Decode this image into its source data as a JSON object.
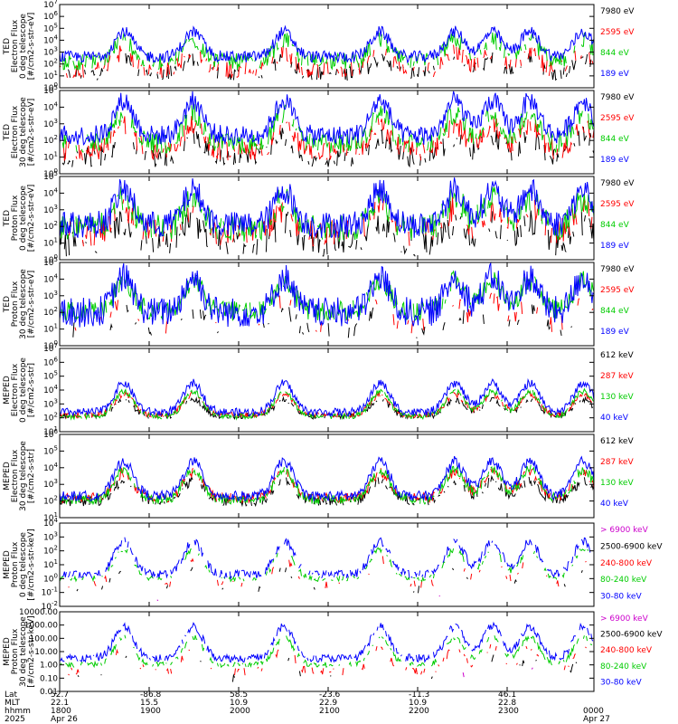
{
  "chart_data": [
    {
      "type": "line",
      "ylabel": [
        "TED",
        "Electron Flux",
        "0 deg telescope",
        "[#/cm2-s-str-eV]"
      ],
      "yscale": "log",
      "ylim": [
        1,
        10000000
      ],
      "ytick_labels": [
        "10^0",
        "10^1",
        "10^2",
        "10^3",
        "10^4",
        "10^5",
        "10^6",
        "10^7"
      ],
      "series": [
        {
          "name": "7980 eV",
          "color": "#000000",
          "level": 1.2,
          "spread": 0.6,
          "density": 0.5
        },
        {
          "name": "2595 eV",
          "color": "#ff0000",
          "level": 1.5,
          "spread": 0.7,
          "density": 0.6
        },
        {
          "name": "844 eV",
          "color": "#00cc00",
          "level": 2.2,
          "spread": 0.7,
          "density": 0.8
        },
        {
          "name": "189 eV",
          "color": "#0000ff",
          "level": 2.6,
          "spread": 0.5,
          "density": 1.0
        }
      ]
    },
    {
      "type": "line",
      "ylabel": [
        "TED",
        "Electron Flux",
        "30 deg telescope",
        "[#/cm2-s-str-eV]"
      ],
      "yscale": "log",
      "ylim": [
        1,
        100000
      ],
      "ytick_labels": [
        "10^0",
        "10^1",
        "10^2",
        "10^3",
        "10^4",
        "10^5"
      ],
      "series": [
        {
          "name": "7980 eV",
          "color": "#000000",
          "level": 1.0,
          "spread": 0.6,
          "density": 0.6
        },
        {
          "name": "2595 eV",
          "color": "#ff0000",
          "level": 1.4,
          "spread": 0.6,
          "density": 0.7
        },
        {
          "name": "844 eV",
          "color": "#00cc00",
          "level": 1.8,
          "spread": 0.6,
          "density": 0.8
        },
        {
          "name": "189 eV",
          "color": "#0000ff",
          "level": 2.3,
          "spread": 0.6,
          "density": 1.0
        }
      ]
    },
    {
      "type": "line",
      "ylabel": [
        "TED",
        "Proton Flux",
        "0 deg telescope",
        "[#/cm2-s-str-eV]"
      ],
      "yscale": "log",
      "ylim": [
        1,
        100000
      ],
      "ytick_labels": [
        "10^0",
        "10^1",
        "10^2",
        "10^3",
        "10^4",
        "10^5"
      ],
      "series": [
        {
          "name": "7980 eV",
          "color": "#000000",
          "level": 1.0,
          "spread": 0.8,
          "density": 0.6
        },
        {
          "name": "2595 eV",
          "color": "#ff0000",
          "level": 1.6,
          "spread": 0.8,
          "density": 0.6
        },
        {
          "name": "844 eV",
          "color": "#00cc00",
          "level": 1.9,
          "spread": 0.8,
          "density": 0.8
        },
        {
          "name": "189 eV",
          "color": "#0000ff",
          "level": 2.1,
          "spread": 0.8,
          "density": 1.0
        }
      ]
    },
    {
      "type": "line",
      "ylabel": [
        "TED",
        "Proton Flux",
        "30 deg telescope",
        "[#/cm2-s-str-eV]"
      ],
      "yscale": "log",
      "ylim": [
        1,
        100000
      ],
      "ytick_labels": [
        "10^0",
        "10^1",
        "10^2",
        "10^3",
        "10^4",
        "10^5"
      ],
      "series": [
        {
          "name": "7980 eV",
          "color": "#000000",
          "level": 0.9,
          "spread": 0.5,
          "density": 0.3
        },
        {
          "name": "2595 eV",
          "color": "#ff0000",
          "level": 1.2,
          "spread": 0.5,
          "density": 0.3
        },
        {
          "name": "844 eV",
          "color": "#00cc00",
          "level": 2.1,
          "spread": 0.6,
          "density": 0.9
        },
        {
          "name": "189 eV",
          "color": "#0000ff",
          "level": 2.0,
          "spread": 0.9,
          "density": 1.0
        }
      ]
    },
    {
      "type": "line",
      "ylabel": [
        "MEPED",
        "Electron Flux",
        "0 deg telescope",
        "[#/cm2-s-str]"
      ],
      "yscale": "log",
      "ylim": [
        10,
        10000000
      ],
      "ytick_labels": [
        "10^1",
        "10^2",
        "10^3",
        "10^4",
        "10^5",
        "10^6",
        "10^7"
      ],
      "series": [
        {
          "name": "612 keV",
          "color": "#000000",
          "level": 2.1,
          "spread": 0.2,
          "density": 0.7
        },
        {
          "name": "287 keV",
          "color": "#ff0000",
          "level": 2.2,
          "spread": 0.2,
          "density": 0.8
        },
        {
          "name": "130 keV",
          "color": "#00cc00",
          "level": 2.1,
          "spread": 0.2,
          "density": 0.9
        },
        {
          "name": "40 keV",
          "color": "#0000ff",
          "level": 2.4,
          "spread": 0.3,
          "density": 1.0
        }
      ]
    },
    {
      "type": "line",
      "ylabel": [
        "MEPED",
        "Electron Flux",
        "30 deg telescope",
        "[#/cm2-s-str]"
      ],
      "yscale": "log",
      "ylim": [
        10,
        1000000
      ],
      "ytick_labels": [
        "10^1",
        "10^2",
        "10^3",
        "10^4",
        "10^5",
        "10^6"
      ],
      "series": [
        {
          "name": "612 keV",
          "color": "#000000",
          "level": 2.0,
          "spread": 0.3,
          "density": 0.7
        },
        {
          "name": "287 keV",
          "color": "#ff0000",
          "level": 2.2,
          "spread": 0.3,
          "density": 0.8
        },
        {
          "name": "130 keV",
          "color": "#00cc00",
          "level": 2.1,
          "spread": 0.3,
          "density": 0.9
        },
        {
          "name": "40 keV",
          "color": "#0000ff",
          "level": 2.3,
          "spread": 0.3,
          "density": 1.0
        }
      ]
    },
    {
      "type": "line",
      "ylabel": [
        "MEPED",
        "Proton Flux",
        "0 deg telescope",
        "[#/cm2-s-str-keV]"
      ],
      "yscale": "log",
      "ylim": [
        0.01,
        10000
      ],
      "ytick_labels": [
        "10^-2",
        "10^-1",
        "10^0",
        "10^1",
        "10^2",
        "10^3",
        "10^4"
      ],
      "series": [
        {
          "name": "> 6900 keV",
          "color": "#cc00cc",
          "level": -1.5,
          "spread": 0.2,
          "density": 0.05
        },
        {
          "name": "2500-6900 keV",
          "color": "#000000",
          "level": -0.8,
          "spread": 0.3,
          "density": 0.2
        },
        {
          "name": "240-800 keV",
          "color": "#ff0000",
          "level": -0.4,
          "spread": 0.3,
          "density": 0.3
        },
        {
          "name": "80-240 keV",
          "color": "#00cc00",
          "level": 0.0,
          "spread": 0.2,
          "density": 0.6
        },
        {
          "name": "30-80 keV",
          "color": "#0000ff",
          "level": 0.3,
          "spread": 0.3,
          "density": 0.8
        }
      ]
    },
    {
      "type": "line",
      "ylabel": [
        "MEPED",
        "Proton Flux",
        "30 deg telescope",
        "[#/cm2-s-str-keV]"
      ],
      "yscale": "log",
      "ylim": [
        0.01,
        10000
      ],
      "ytick_labels": [
        "10000.00",
        "1000.00",
        "100.00",
        "10.00",
        "1.00",
        "0.10",
        "0.01"
      ],
      "series": [
        {
          "name": "> 6900 keV",
          "color": "#cc00cc",
          "level": -1.5,
          "spread": 0.2,
          "density": 0.05
        },
        {
          "name": "2500-6900 keV",
          "color": "#000000",
          "level": -1.0,
          "spread": 0.3,
          "density": 0.2
        },
        {
          "name": "240-800 keV",
          "color": "#ff0000",
          "level": -0.5,
          "spread": 0.3,
          "density": 0.4
        },
        {
          "name": "80-240 keV",
          "color": "#00cc00",
          "level": 0.0,
          "spread": 0.2,
          "density": 0.7
        },
        {
          "name": "30-80 keV",
          "color": "#0000ff",
          "level": 0.5,
          "spread": 0.3,
          "density": 0.9
        }
      ]
    }
  ],
  "x_axis": {
    "row_labels": [
      "Lat",
      "MLT",
      "hhmm",
      "2025"
    ],
    "columns": [
      {
        "lat": "52.7",
        "mlt": "22.1",
        "hhmm": "1800",
        "date": "Apr 26"
      },
      {
        "lat": "-86.8",
        "mlt": "15.5",
        "hhmm": "1900",
        "date": ""
      },
      {
        "lat": "58.5",
        "mlt": "10.9",
        "hhmm": "2000",
        "date": ""
      },
      {
        "lat": "-23.6",
        "mlt": "22.9",
        "hhmm": "2100",
        "date": ""
      },
      {
        "lat": "-11.3",
        "mlt": "10.9",
        "hhmm": "2200",
        "date": ""
      },
      {
        "lat": "46.1",
        "mlt": "22.8",
        "hhmm": "2300",
        "date": ""
      },
      {
        "lat": "",
        "mlt": "",
        "hhmm": "0000",
        "date": "Apr 27"
      }
    ]
  },
  "colors": {
    "axis": "#000000",
    "background": "#ffffff"
  }
}
